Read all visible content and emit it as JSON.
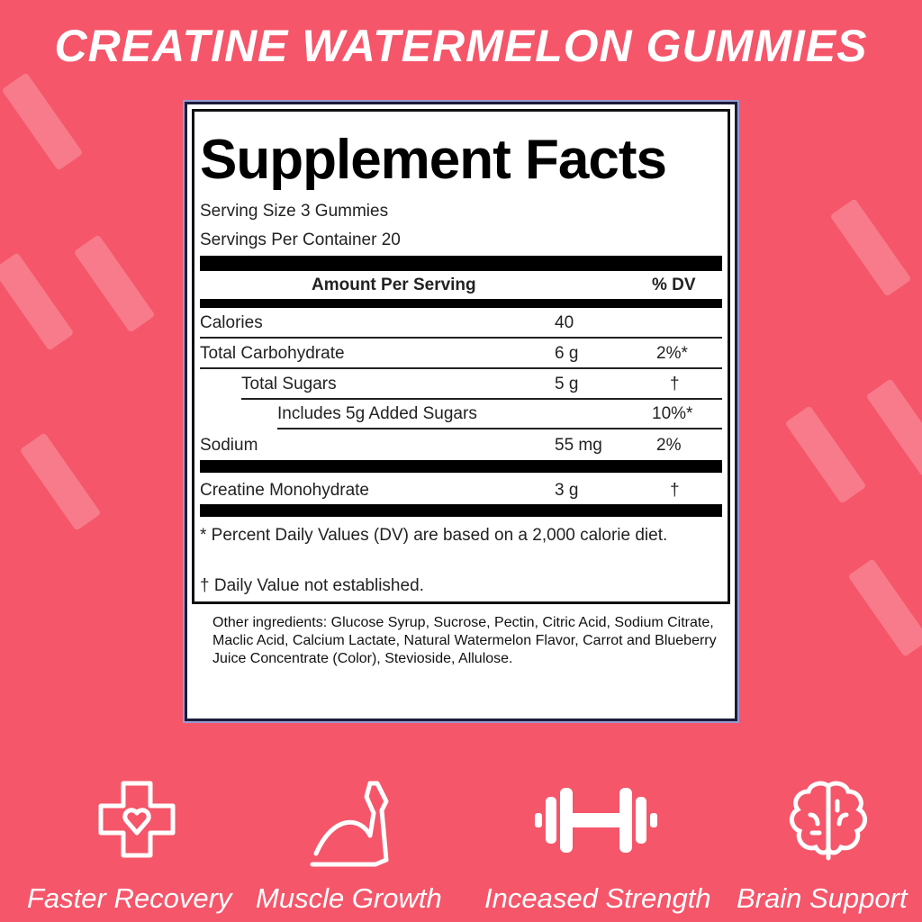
{
  "title": "CREATINE WATERMELON GUMMIES",
  "facts": {
    "heading": "Supplement Facts",
    "serving_size": "Serving Size 3 Gummies",
    "servings_per_container": "Servings Per Container 20",
    "col_amount": "Amount Per Serving",
    "col_dv": "% DV",
    "rows": [
      {
        "name": "Calories",
        "amount": "40",
        "dv": ""
      },
      {
        "name": "Total Carbohydrate",
        "amount": "6 g",
        "dv": "2%*"
      },
      {
        "name": "Total Sugars",
        "amount": "5 g",
        "dv": "†"
      },
      {
        "name": "Includes 5g Added Sugars",
        "amount": "",
        "dv": "10%*"
      },
      {
        "name": "Sodium",
        "amount": "55 mg",
        "dv": "2%"
      },
      {
        "name": "Creatine Monohydrate",
        "amount": "3 g",
        "dv": "†"
      }
    ],
    "footnote1": "* Percent Daily Values (DV) are based on a 2,000 calorie diet.",
    "footnote2": "† Daily Value not established."
  },
  "ingredients": "Other ingredients: Glucose Syrup, Sucrose, Pectin, Citric Acid, Sodium Citrate, Maclic Acid, Calcium Lactate, Natural Watermelon Flavor, Carrot and Blueberry Juice Concentrate (Color), Stevioside, Allulose.",
  "features": [
    {
      "label": "Faster Recovery",
      "icon": "medical-cross-heart-icon"
    },
    {
      "label": "Muscle Growth",
      "icon": "flexed-arm-icon"
    },
    {
      "label": "Inceased Strength",
      "icon": "dumbbell-icon"
    },
    {
      "label": "Brain Support",
      "icon": "brain-icon"
    }
  ],
  "colors": {
    "background": "#f5566a"
  }
}
